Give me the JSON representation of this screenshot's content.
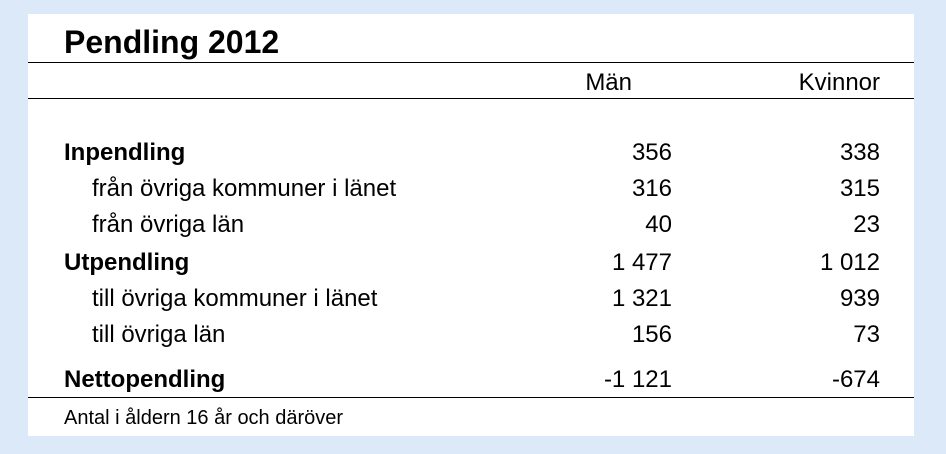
{
  "title": "Pendling 2012",
  "columns": {
    "men": "Män",
    "women": "Kvinnor"
  },
  "rows": [
    {
      "label": "Inpendling",
      "men": "356",
      "women": "338",
      "kind": "head"
    },
    {
      "label": "från övriga kommuner i länet",
      "men": "316",
      "women": "315",
      "kind": "sub"
    },
    {
      "label": "från övriga län",
      "men": "40",
      "women": "23",
      "kind": "sub"
    },
    {
      "label": "Utpendling",
      "men": "1 477",
      "women": "1 012",
      "kind": "head"
    },
    {
      "label": "till övriga kommuner i länet",
      "men": "1 321",
      "women": "939",
      "kind": "sub"
    },
    {
      "label": "till övriga län",
      "men": "156",
      "women": "73",
      "kind": "sub"
    },
    {
      "label": "Nettopendling",
      "men": "-1 121",
      "women": "-674",
      "kind": "head"
    }
  ],
  "footnote": "Antal i åldern 16 år och däröver",
  "colors": {
    "background": "#dbe9f8",
    "panel": "#ffffff",
    "text": "#000000"
  }
}
